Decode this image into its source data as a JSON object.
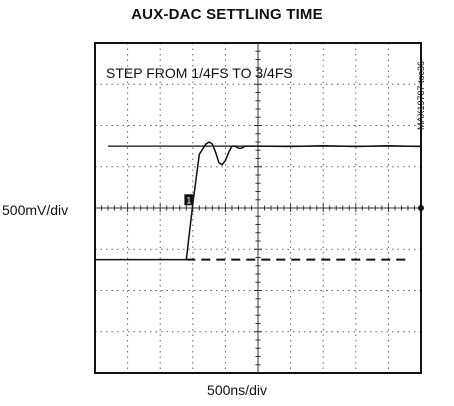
{
  "figure_id": "MAX19707 toc36",
  "chart_data": {
    "type": "line",
    "title": "AUX-DAC SETTLING TIME",
    "annotation": "STEP FROM 1/4FS TO 3/4FS",
    "ylabel": "500mV/div",
    "xlabel": "500ns/div",
    "grid": true,
    "divisions": {
      "x": 10,
      "y": 8
    },
    "xlim": [
      0,
      10
    ],
    "ylim": [
      -4,
      4
    ],
    "channel_marker": "1",
    "reference_lines": [
      {
        "style": "solid",
        "y": 1.5,
        "x": [
          0.4,
          10
        ]
      },
      {
        "style": "dashed",
        "y": -1.25,
        "x": [
          2.8,
          9.7
        ]
      }
    ],
    "series": [
      {
        "x": [
          0,
          1.5,
          2.2,
          2.8,
          3.0,
          3.2,
          3.4,
          3.5,
          3.6,
          3.7,
          3.8,
          3.9,
          4.0,
          4.1,
          4.2,
          4.3,
          4.4,
          4.5,
          4.6,
          4.8,
          5.0,
          6.0,
          7.0,
          8.0,
          9.0,
          10.0
        ],
        "y": [
          -1.25,
          -1.25,
          -1.25,
          -1.25,
          0.1,
          1.3,
          1.55,
          1.6,
          1.55,
          1.35,
          1.1,
          1.05,
          1.15,
          1.35,
          1.5,
          1.5,
          1.45,
          1.45,
          1.5,
          1.5,
          1.5,
          1.5,
          1.5,
          1.5,
          1.5,
          1.5
        ]
      }
    ]
  }
}
